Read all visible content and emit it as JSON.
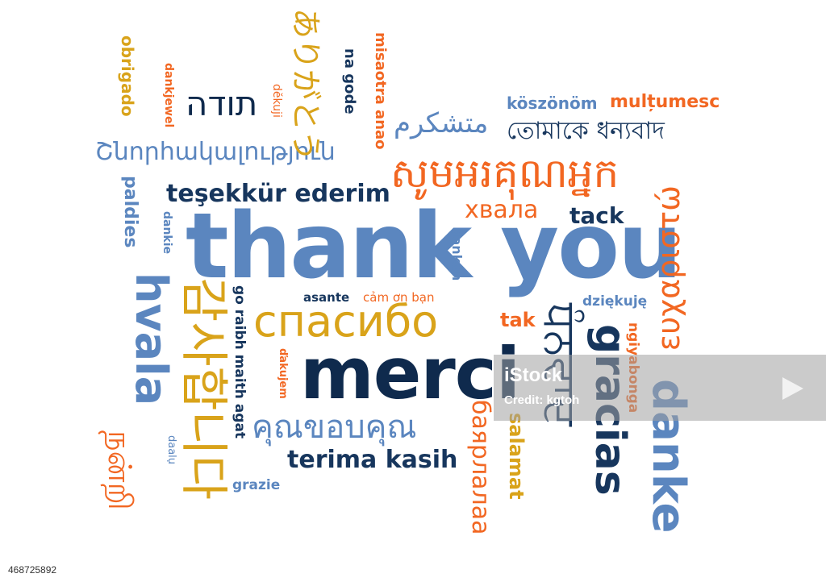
{
  "cloud": {
    "thank_you": "thank you",
    "merci": "merci",
    "spasibo": "спасибо",
    "hvala": "hvala",
    "gracias": "gracias",
    "danke": "danke",
    "tesekkur": "teşekkür ederim",
    "terima": "terima kasih",
    "khmer": "សូមអរគុណអ្នក",
    "bengali": "তোমাকে ধন্যবাদ",
    "persian": "متشکرم",
    "armenian": "Շնորհակալություն",
    "hebrew": "תודה",
    "japanese": "ありがとう",
    "korean": "감사합니다",
    "thai": "คุณขอบคุณ",
    "punjabi": "ਧੰਨਵਾਦ",
    "tamil": "நன்றி",
    "mongolian": "баярлалаа",
    "greek": "ευχαριστώ",
    "ukrainian": "хвала",
    "obrigado": "obrigado",
    "dankjewel": "dankjewel",
    "deekuji": "děkuji",
    "na_gode": "na gode",
    "misaotra": "misaotra anao",
    "koszonom": "köszönöm",
    "multumesc": "mulțumesc",
    "paldies": "paldies",
    "dankie": "dankie",
    "tack": "tack",
    "dankon": "dankon",
    "asante": "asante",
    "cam_on": "cảm ơn bạn",
    "tak": "tak",
    "dziekuje": "dziękuję",
    "ngiyabonga": "ngiyabonga",
    "go_raibh": "go raibh maith agat",
    "dakujem": "ďakujem",
    "daalu": "daalụ",
    "grazie": "grazie",
    "salamat": "salamat"
  },
  "watermark": {
    "logo": "iStock",
    "credit": "Credit: kgtoh"
  },
  "footer": {
    "image_id": "468725892"
  },
  "colors": {
    "blue": "#5b86bf",
    "navy": "#17365d",
    "orange": "#f26722",
    "yellow": "#d9a31a"
  }
}
